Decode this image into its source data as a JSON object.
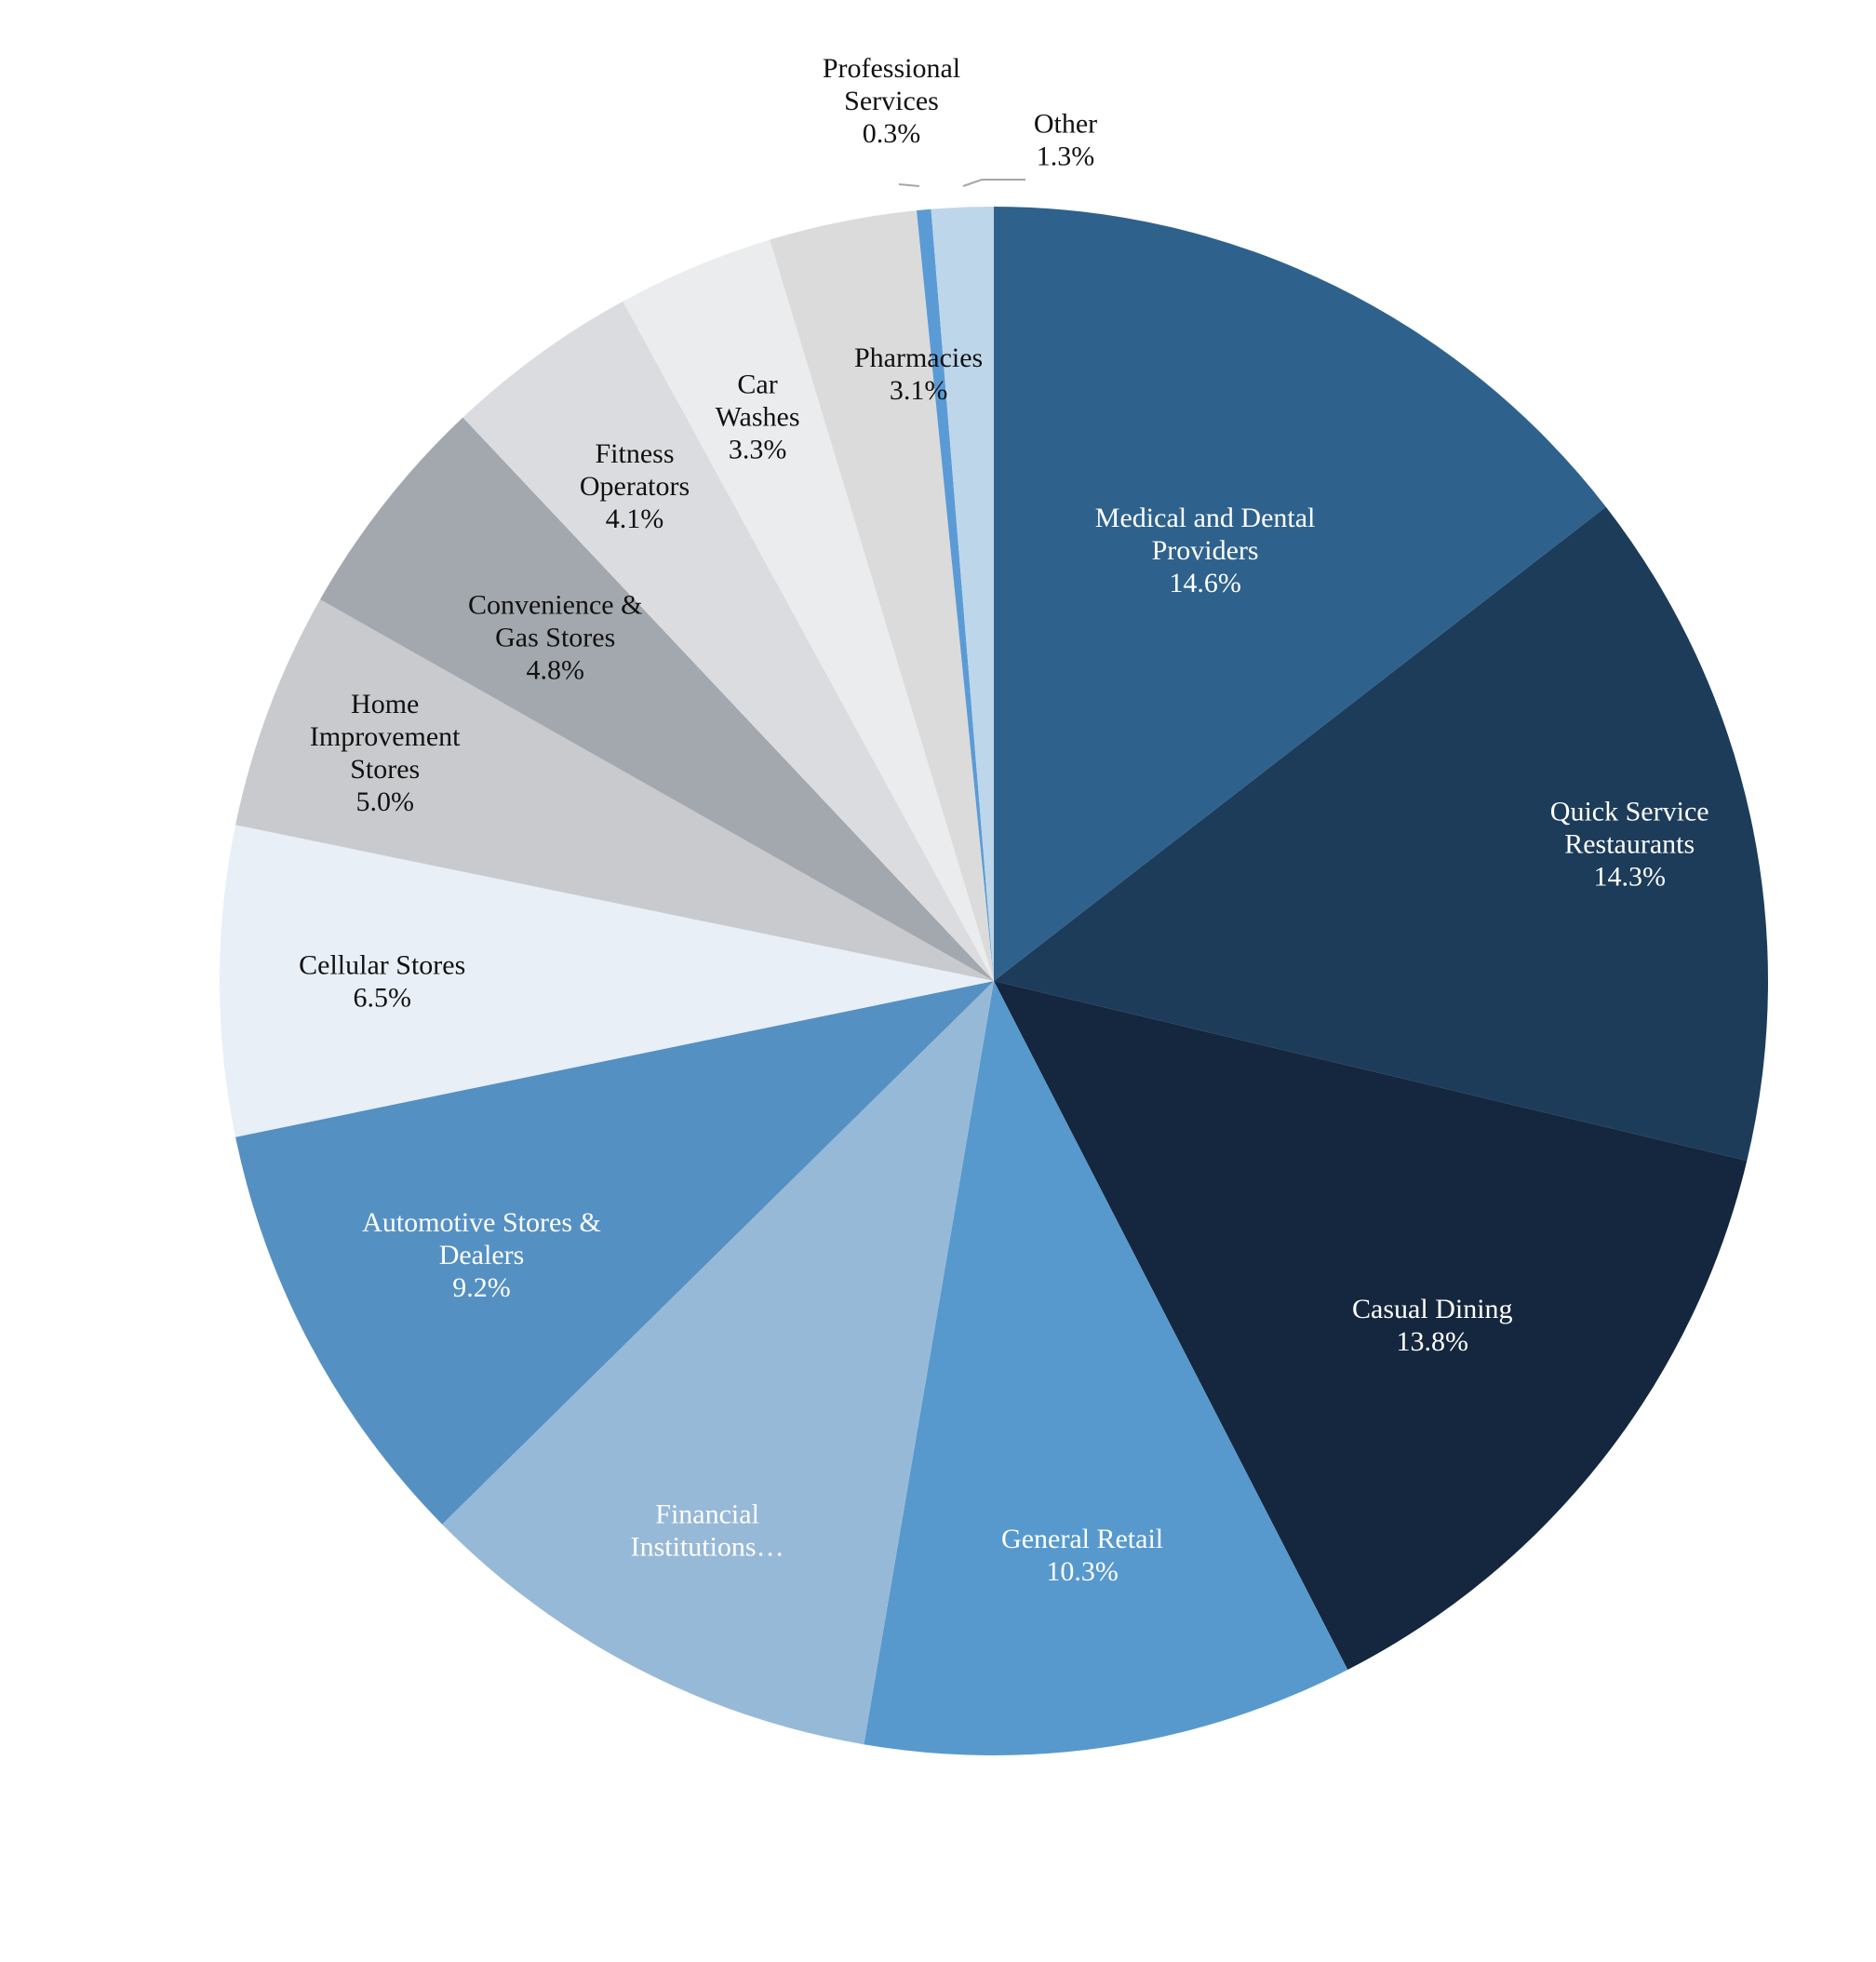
{
  "chart_data": {
    "type": "pie",
    "title": "",
    "slices": [
      {
        "label": [
          "Medical and Dental",
          "Providers"
        ],
        "value": 14.6,
        "value_label": "14.6%",
        "color": "#2e628d",
        "text_color": "#ffffff"
      },
      {
        "label": [
          "Quick Service",
          "Restaurants"
        ],
        "value": 14.3,
        "value_label": "14.3%",
        "color": "#1d3c5a",
        "text_color": "#ffffff"
      },
      {
        "label": [
          "Casual Dining"
        ],
        "value": 13.8,
        "value_label": "13.8%",
        "color": "#15273e",
        "text_color": "#ffffff"
      },
      {
        "label": [
          "General Retail"
        ],
        "value": 10.3,
        "value_label": "10.3%",
        "color": "#5799cd",
        "text_color": "#ffffff"
      },
      {
        "label": [
          "Financial",
          "Institutions…"
        ],
        "value": 10.0,
        "value_label": "",
        "color": "#97b9d8",
        "text_color": "#ffffff"
      },
      {
        "label": [
          "Automotive Stores &",
          "Dealers"
        ],
        "value": 9.2,
        "value_label": "9.2%",
        "color": "#5590c3",
        "text_color": "#ffffff"
      },
      {
        "label": [
          "Cellular Stores"
        ],
        "value": 6.5,
        "value_label": "6.5%",
        "color": "#e8eff6",
        "text_color": "#111111"
      },
      {
        "label": [
          "Home",
          "Improvement",
          "Stores"
        ],
        "value": 5.0,
        "value_label": "5.0%",
        "color": "#c8cacd",
        "text_color": "#111111"
      },
      {
        "label": [
          "Convenience &",
          "Gas Stores"
        ],
        "value": 4.8,
        "value_label": "4.8%",
        "color": "#a3a8ae",
        "text_color": "#111111"
      },
      {
        "label": [
          "Fitness",
          "Operators"
        ],
        "value": 4.1,
        "value_label": "4.1%",
        "color": "#dbdcdf",
        "text_color": "#111111"
      },
      {
        "label": [
          "Car",
          "Washes"
        ],
        "value": 3.3,
        "value_label": "3.3%",
        "color": "#ebecee",
        "text_color": "#111111"
      },
      {
        "label": [
          "Pharmacies"
        ],
        "value": 3.1,
        "value_label": "3.1%",
        "color": "#dbdbdb",
        "text_color": "#111111"
      },
      {
        "label": [
          "Professional",
          "Services"
        ],
        "value": 0.3,
        "value_label": "0.3%",
        "color": "#5b9bd5",
        "text_color": "#111111",
        "outside": true
      },
      {
        "label": [
          "Other"
        ],
        "value": 1.3,
        "value_label": "1.3%",
        "color": "#bed6ea",
        "text_color": "#111111",
        "outside": true
      }
    ],
    "legend": "none"
  }
}
